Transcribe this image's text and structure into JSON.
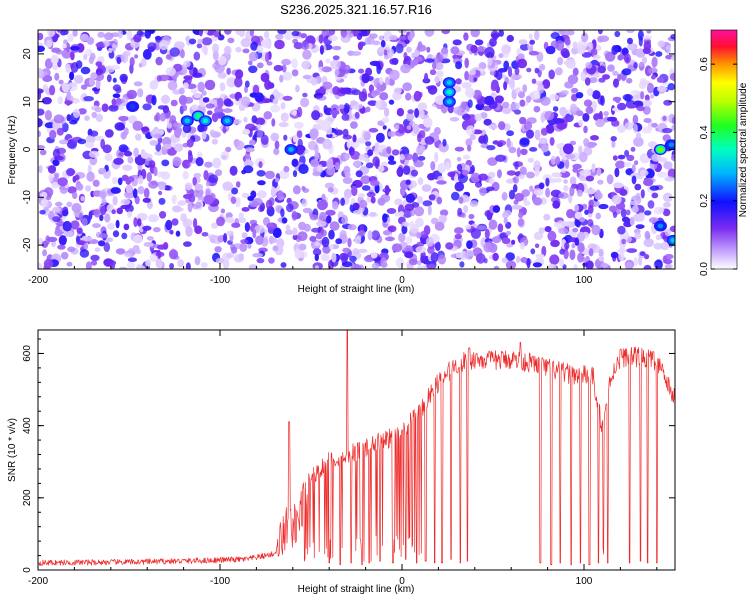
{
  "figure_title": "S236.2025.321.16.57.R16",
  "colors": {
    "spec_base": "#7a2cf0",
    "snr_line": "#ee2a2a",
    "axis": "#000000"
  },
  "colorbar": {
    "label": "Normalized spectral amplitude",
    "range": [
      0.0,
      0.7
    ],
    "ticks": [
      "0.0",
      "0.2",
      "0.4",
      "0.6"
    ],
    "tick_values": [
      0.0,
      0.2,
      0.4,
      0.6
    ]
  },
  "chart_data": [
    {
      "type": "heatmap",
      "title": "S236.2025.321.16.57.R16",
      "xlabel": "Height of straight line (km)",
      "ylabel": "Frequency (Hz)",
      "xlim": [
        -200,
        150
      ],
      "ylim": [
        -25,
        25
      ],
      "xticks": [
        -200,
        -100,
        0,
        100
      ],
      "xtick_labels": [
        "-200",
        "-100",
        "0",
        "100"
      ],
      "yticks": [
        -20,
        -10,
        0,
        10,
        20
      ],
      "ytick_labels": [
        "-20",
        "-10",
        "0",
        "10",
        "20"
      ],
      "z_range": [
        0.0,
        0.7
      ],
      "hot_spots": [
        {
          "x": -148,
          "y": 9,
          "value": 0.22
        },
        {
          "x": -118,
          "y": 6,
          "value": 0.3
        },
        {
          "x": -112,
          "y": 7,
          "value": 0.38
        },
        {
          "x": -108,
          "y": 6,
          "value": 0.33
        },
        {
          "x": -96,
          "y": 6,
          "value": 0.3
        },
        {
          "x": -61,
          "y": 0,
          "value": 0.28
        },
        {
          "x": 26,
          "y": 14,
          "value": 0.3
        },
        {
          "x": 26,
          "y": 12,
          "value": 0.34
        },
        {
          "x": 26,
          "y": 10,
          "value": 0.3
        },
        {
          "x": 142,
          "y": 0,
          "value": 0.46
        },
        {
          "x": 142,
          "y": -16,
          "value": 0.26
        },
        {
          "x": 149,
          "y": -19,
          "value": 0.3
        },
        {
          "x": 148,
          "y": 1,
          "value": 0.26
        }
      ],
      "quiet_columns": [
        -62,
        26,
        113
      ]
    },
    {
      "type": "line",
      "xlabel": "Height of straight line (km)",
      "ylabel": "SNR (10 * v/v)",
      "xlim": [
        -200,
        150
      ],
      "ylim": [
        0,
        665
      ],
      "xticks": [
        -200,
        -100,
        0,
        100
      ],
      "xtick_labels": [
        "-200",
        "-100",
        "0",
        "100"
      ],
      "yticks": [
        0,
        200,
        400,
        600
      ],
      "ytick_labels": [
        "0",
        "200",
        "400",
        "600"
      ],
      "series": [
        {
          "name": "SNR",
          "envelope_x": [
            -200,
            -150,
            -110,
            -85,
            -70,
            -62,
            -58,
            -50,
            -40,
            -30,
            -20,
            -10,
            0,
            10,
            20,
            30,
            40,
            50,
            60,
            70,
            80,
            90,
            100,
            105,
            110,
            115,
            120,
            130,
            140,
            150
          ],
          "envelope_y": [
            20,
            22,
            26,
            30,
            45,
            130,
            120,
            260,
            300,
            320,
            340,
            360,
            380,
            440,
            520,
            570,
            585,
            580,
            585,
            575,
            560,
            545,
            540,
            535,
            390,
            540,
            590,
            590,
            580,
            470
          ],
          "spikes": [
            {
              "x": -62,
              "y": 410
            },
            {
              "x": -30,
              "y": 665
            },
            {
              "x": 65,
              "y": 630
            },
            {
              "x": 37,
              "y": 615
            }
          ],
          "dropouts": [
            {
              "x": -40,
              "y": 20
            },
            {
              "x": -34,
              "y": 15
            },
            {
              "x": -28,
              "y": 20
            },
            {
              "x": -22,
              "y": 15
            },
            {
              "x": -18,
              "y": 20
            },
            {
              "x": -12,
              "y": 25
            },
            {
              "x": -5,
              "y": 20
            },
            {
              "x": 2,
              "y": 30
            },
            {
              "x": 8,
              "y": 20
            },
            {
              "x": 13,
              "y": 25
            },
            {
              "x": 18,
              "y": 20
            },
            {
              "x": 22,
              "y": 20
            },
            {
              "x": 27,
              "y": 30
            },
            {
              "x": 32,
              "y": 20
            },
            {
              "x": 36,
              "y": 25
            },
            {
              "x": 76,
              "y": 20
            },
            {
              "x": 82,
              "y": 15
            },
            {
              "x": 87,
              "y": 20
            },
            {
              "x": 93,
              "y": 15
            },
            {
              "x": 98,
              "y": 20
            },
            {
              "x": 103,
              "y": 15
            },
            {
              "x": 108,
              "y": 20
            },
            {
              "x": 113,
              "y": 20
            },
            {
              "x": 125,
              "y": 20
            },
            {
              "x": 131,
              "y": 25
            },
            {
              "x": 135,
              "y": 20
            },
            {
              "x": 140,
              "y": 20
            }
          ]
        }
      ]
    }
  ]
}
